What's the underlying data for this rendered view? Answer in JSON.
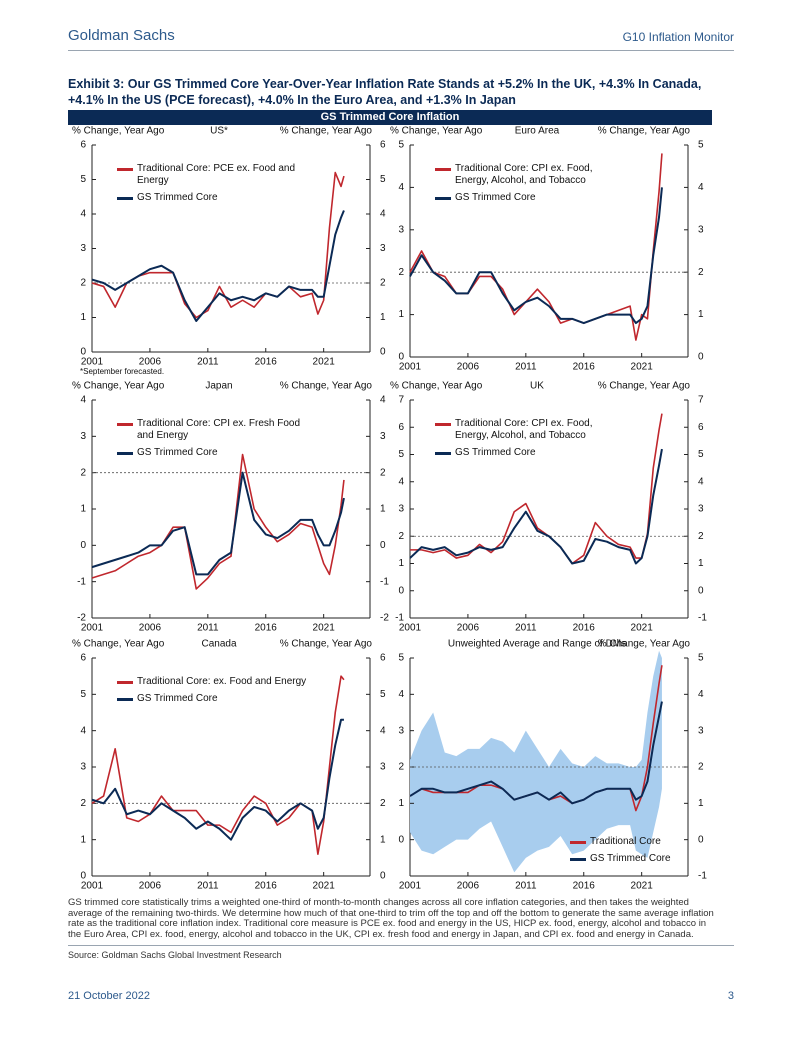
{
  "header": {
    "left": "Goldman Sachs",
    "right": "G10 Inflation Monitor"
  },
  "exhibit_title": "Exhibit 3: Our GS Trimmed Core Year-Over-Year Inflation Rate Stands at +5.2% In the UK, +4.3% In Canada, +4.1% In the US (PCE forecast), +4.0% In the Euro Area, and +1.3% In Japan",
  "banner": "GS Trimmed Core Inflation",
  "chart_data": [
    {
      "type": "line",
      "title": "US*",
      "ylabel": "% Change, Year Ago",
      "y2label": "% Change, Year Ago",
      "note": "*September forecasted.",
      "legend": "upper left",
      "reference_line": 2,
      "x": [
        2001,
        2002,
        2003,
        2004,
        2005,
        2006,
        2007,
        2008,
        2009,
        2010,
        2011,
        2012,
        2013,
        2014,
        2015,
        2016,
        2017,
        2018,
        2019,
        2020,
        2020.5,
        2021,
        2021.5,
        2022,
        2022.5,
        2022.75
      ],
      "series": [
        {
          "name": "Traditional Core: PCE ex. Food and Energy",
          "color": "#c0272d",
          "values": [
            2.0,
            1.9,
            1.3,
            2.0,
            2.2,
            2.3,
            2.3,
            2.3,
            1.4,
            1.0,
            1.2,
            1.9,
            1.3,
            1.5,
            1.3,
            1.7,
            1.6,
            1.9,
            1.6,
            1.7,
            1.1,
            1.5,
            3.6,
            5.2,
            4.8,
            5.1
          ]
        },
        {
          "name": "GS Trimmed Core",
          "color": "#0b2a55",
          "values": [
            2.1,
            2.0,
            1.8,
            2.0,
            2.2,
            2.4,
            2.5,
            2.3,
            1.5,
            0.9,
            1.3,
            1.7,
            1.5,
            1.6,
            1.5,
            1.7,
            1.6,
            1.9,
            1.8,
            1.8,
            1.6,
            1.6,
            2.5,
            3.4,
            3.9,
            4.1
          ]
        }
      ],
      "xlim": [
        2001,
        2025
      ],
      "xticks": [
        2001,
        2006,
        2011,
        2016,
        2021
      ],
      "ylim": [
        0,
        6
      ],
      "yticks": [
        0,
        1,
        2,
        3,
        4,
        5,
        6
      ],
      "y2lim": [
        0,
        6
      ],
      "y2ticks": [
        0,
        1,
        2,
        3,
        4,
        5,
        6
      ]
    },
    {
      "type": "line",
      "title": "Euro Area",
      "ylabel": "% Change, Year Ago",
      "y2label": "% Change, Year Ago",
      "legend": "upper left",
      "reference_line": 2,
      "x": [
        2001,
        2002,
        2003,
        2004,
        2005,
        2006,
        2007,
        2008,
        2009,
        2010,
        2011,
        2012,
        2013,
        2014,
        2015,
        2016,
        2017,
        2018,
        2019,
        2020,
        2020.5,
        2021,
        2021.5,
        2022,
        2022.5,
        2022.75
      ],
      "series": [
        {
          "name": "Traditional Core: CPI ex. Food, Energy, Alcohol, and Tobacco",
          "color": "#c0272d",
          "values": [
            2.0,
            2.5,
            2.0,
            1.9,
            1.5,
            1.5,
            1.9,
            1.9,
            1.6,
            1.0,
            1.3,
            1.6,
            1.3,
            0.8,
            0.9,
            0.8,
            0.9,
            1.0,
            1.1,
            1.2,
            0.4,
            1.0,
            0.9,
            2.5,
            3.9,
            4.8
          ]
        },
        {
          "name": "GS Trimmed Core",
          "color": "#0b2a55",
          "values": [
            1.9,
            2.4,
            2.0,
            1.8,
            1.5,
            1.5,
            2.0,
            2.0,
            1.5,
            1.1,
            1.3,
            1.4,
            1.2,
            0.9,
            0.9,
            0.8,
            0.9,
            1.0,
            1.0,
            1.0,
            0.8,
            0.9,
            1.2,
            2.4,
            3.3,
            4.0
          ]
        }
      ],
      "xlim": [
        2001,
        2025
      ],
      "xticks": [
        2001,
        2006,
        2011,
        2016,
        2021
      ],
      "ylim": [
        0,
        5
      ],
      "yticks": [
        0,
        1,
        2,
        3,
        4,
        5
      ],
      "y2lim": [
        0,
        5
      ],
      "y2ticks": [
        0,
        1,
        2,
        3,
        4,
        5
      ]
    },
    {
      "type": "line",
      "title": "Japan",
      "ylabel": "% Change, Year Ago",
      "y2label": "% Change, Year Ago",
      "legend": "upper left",
      "reference_line": 2,
      "x": [
        2001,
        2002,
        2003,
        2004,
        2005,
        2006,
        2007,
        2008,
        2009,
        2010,
        2011,
        2012,
        2013,
        2014,
        2015,
        2016,
        2017,
        2018,
        2019,
        2020,
        2020.5,
        2021,
        2021.5,
        2022,
        2022.5,
        2022.75
      ],
      "series": [
        {
          "name": "Traditional Core: CPI ex. Fresh Food and Energy",
          "color": "#c0272d",
          "values": [
            -0.9,
            -0.8,
            -0.7,
            -0.5,
            -0.3,
            -0.2,
            0.0,
            0.5,
            0.5,
            -1.2,
            -0.9,
            -0.5,
            -0.3,
            2.5,
            1.0,
            0.5,
            0.1,
            0.3,
            0.6,
            0.5,
            0.0,
            -0.5,
            -0.8,
            0.0,
            1.1,
            1.8
          ]
        },
        {
          "name": "GS Trimmed Core",
          "color": "#0b2a55",
          "values": [
            -0.6,
            -0.5,
            -0.4,
            -0.3,
            -0.2,
            0.0,
            0.0,
            0.4,
            0.5,
            -0.8,
            -0.8,
            -0.4,
            -0.2,
            2.0,
            0.7,
            0.3,
            0.2,
            0.4,
            0.7,
            0.7,
            0.3,
            0.0,
            0.0,
            0.4,
            0.9,
            1.3
          ]
        }
      ],
      "xlim": [
        2001,
        2025
      ],
      "xticks": [
        2001,
        2006,
        2011,
        2016,
        2021
      ],
      "ylim": [
        -2,
        4
      ],
      "yticks": [
        -2,
        -1,
        0,
        1,
        2,
        3,
        4
      ],
      "y2lim": [
        -2,
        4
      ],
      "y2ticks": [
        -2,
        -1,
        0,
        1,
        2,
        3,
        4
      ]
    },
    {
      "type": "line",
      "title": "UK",
      "ylabel": "% Change, Year Ago",
      "y2label": "% Change, Year Ago",
      "legend": "upper left",
      "reference_line": 2,
      "x": [
        2001,
        2002,
        2003,
        2004,
        2005,
        2006,
        2007,
        2008,
        2009,
        2010,
        2011,
        2012,
        2013,
        2014,
        2015,
        2016,
        2017,
        2018,
        2019,
        2020,
        2020.5,
        2021,
        2021.5,
        2022,
        2022.5,
        2022.75
      ],
      "series": [
        {
          "name": "Traditional Core: CPI ex. Food, Energy, Alcohol, and Tobacco",
          "color": "#c0272d",
          "values": [
            1.5,
            1.5,
            1.4,
            1.5,
            1.2,
            1.3,
            1.7,
            1.4,
            1.8,
            2.9,
            3.2,
            2.3,
            2.0,
            1.6,
            1.0,
            1.3,
            2.5,
            2.0,
            1.7,
            1.6,
            1.2,
            1.2,
            2.1,
            4.5,
            5.9,
            6.5
          ]
        },
        {
          "name": "GS Trimmed Core",
          "color": "#0b2a55",
          "values": [
            1.2,
            1.6,
            1.5,
            1.6,
            1.3,
            1.4,
            1.6,
            1.5,
            1.6,
            2.3,
            2.9,
            2.2,
            2.0,
            1.6,
            1.0,
            1.1,
            1.9,
            1.8,
            1.6,
            1.5,
            1.0,
            1.2,
            2.0,
            3.5,
            4.6,
            5.2
          ]
        }
      ],
      "xlim": [
        2001,
        2025
      ],
      "xticks": [
        2001,
        2006,
        2011,
        2016,
        2021
      ],
      "ylim": [
        -1,
        7
      ],
      "yticks": [
        -1,
        0,
        1,
        2,
        3,
        4,
        5,
        6,
        7
      ],
      "y2lim": [
        -1,
        7
      ],
      "y2ticks": [
        -1,
        0,
        1,
        2,
        3,
        4,
        5,
        6,
        7
      ]
    },
    {
      "type": "line",
      "title": "Canada",
      "ylabel": "% Change, Year Ago",
      "y2label": "% Change, Year Ago",
      "legend": "upper left",
      "reference_line": 2,
      "x": [
        2001,
        2002,
        2003,
        2004,
        2005,
        2006,
        2007,
        2008,
        2009,
        2010,
        2011,
        2012,
        2013,
        2014,
        2015,
        2016,
        2017,
        2018,
        2019,
        2020,
        2020.5,
        2021,
        2021.5,
        2022,
        2022.5,
        2022.75
      ],
      "series": [
        {
          "name": "Traditional Core: ex. Food and Energy",
          "color": "#c0272d",
          "values": [
            2.0,
            2.2,
            3.5,
            1.6,
            1.5,
            1.7,
            2.2,
            1.8,
            1.8,
            1.8,
            1.4,
            1.4,
            1.2,
            1.8,
            2.2,
            2.0,
            1.4,
            1.6,
            2.0,
            1.8,
            0.6,
            1.5,
            3.0,
            4.5,
            5.5,
            5.4
          ]
        },
        {
          "name": "GS Trimmed Core",
          "color": "#0b2a55",
          "values": [
            2.1,
            2.0,
            2.4,
            1.7,
            1.8,
            1.7,
            2.0,
            1.8,
            1.6,
            1.3,
            1.5,
            1.3,
            1.0,
            1.6,
            1.9,
            1.8,
            1.5,
            1.8,
            2.0,
            1.8,
            1.3,
            1.6,
            2.7,
            3.6,
            4.3,
            4.3
          ]
        }
      ],
      "xlim": [
        2001,
        2025
      ],
      "xticks": [
        2001,
        2006,
        2011,
        2016,
        2021
      ],
      "ylim": [
        0,
        6
      ],
      "yticks": [
        0,
        1,
        2,
        3,
        4,
        5,
        6
      ],
      "y2lim": [
        0,
        6
      ],
      "y2ticks": [
        0,
        1,
        2,
        3,
        4,
        5,
        6
      ]
    },
    {
      "type": "line",
      "title": "Unweighted Average and Range of DMs",
      "y2label": "% Change, Year Ago",
      "legend": "lower right",
      "reference_line": 2,
      "x": [
        2001,
        2002,
        2003,
        2004,
        2005,
        2006,
        2007,
        2008,
        2009,
        2010,
        2011,
        2012,
        2013,
        2014,
        2015,
        2016,
        2017,
        2018,
        2019,
        2020,
        2020.5,
        2021,
        2021.5,
        2022,
        2022.5,
        2022.75
      ],
      "range": {
        "color": "#a8cdee",
        "low": [
          0.2,
          -0.3,
          -0.4,
          -0.2,
          0.0,
          0.0,
          0.3,
          0.5,
          -0.2,
          -0.9,
          -0.5,
          -0.3,
          -0.2,
          0.1,
          -0.4,
          -0.3,
          0.0,
          0.3,
          0.4,
          0.4,
          -0.3,
          -0.4,
          -0.5,
          0.2,
          0.9,
          1.4
        ],
        "high": [
          2.2,
          3.0,
          3.5,
          2.4,
          2.3,
          2.5,
          2.5,
          2.8,
          2.7,
          2.4,
          3.0,
          2.5,
          2.0,
          2.5,
          2.1,
          2.0,
          2.3,
          2.1,
          2.1,
          2.0,
          2.0,
          2.2,
          3.5,
          4.5,
          5.2,
          5.0
        ]
      },
      "series": [
        {
          "name": "Traditional Core",
          "color": "#c0272d",
          "values": [
            1.2,
            1.4,
            1.3,
            1.3,
            1.3,
            1.3,
            1.5,
            1.5,
            1.4,
            1.1,
            1.2,
            1.3,
            1.1,
            1.2,
            1.0,
            1.1,
            1.3,
            1.4,
            1.4,
            1.4,
            0.8,
            1.2,
            2.0,
            3.2,
            4.3,
            4.8
          ]
        },
        {
          "name": "GS Trimmed Core",
          "color": "#0b2a55",
          "values": [
            1.2,
            1.4,
            1.4,
            1.3,
            1.3,
            1.4,
            1.5,
            1.6,
            1.4,
            1.1,
            1.2,
            1.3,
            1.1,
            1.3,
            1.0,
            1.1,
            1.3,
            1.4,
            1.4,
            1.4,
            1.1,
            1.2,
            1.6,
            2.6,
            3.4,
            3.8
          ]
        }
      ],
      "xlim": [
        2001,
        2025
      ],
      "xticks": [
        2001,
        2006,
        2011,
        2016,
        2021
      ],
      "ylim": [
        -1,
        5
      ],
      "yticks": [
        0,
        1,
        2,
        3,
        4,
        5
      ],
      "y2lim": [
        -1,
        5
      ],
      "y2ticks": [
        -1,
        0,
        1,
        2,
        3,
        4,
        5
      ]
    }
  ],
  "footnote": "GS trimmed core statistically trims a weighted one-third of month-to-month changes across all core inflation categories, and then takes the weighted average of the remaining two-thirds. We determine how much of that one-third to trim off the top and off the bottom to generate the same average inflation rate as the traditional core inflation index. Traditional core measure is PCE ex. food and energy in the US, HICP ex. food, energy, alcohol and tobacco in the Euro Area, CPI ex. food, energy, alcohol and tobacco in the UK, CPI ex. fresh food and energy in Japan, and CPI ex. food and energy in Canada.",
  "source": "Source: Goldman Sachs Global Investment Research",
  "footer": {
    "date": "21 October 2022",
    "page": "3"
  }
}
